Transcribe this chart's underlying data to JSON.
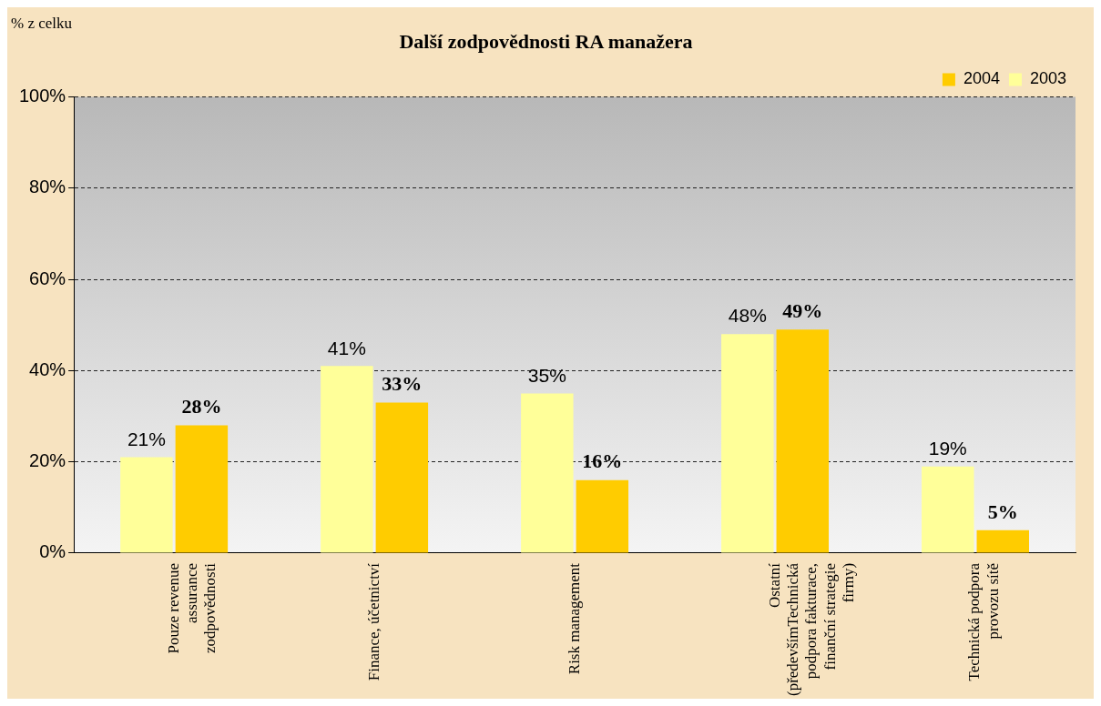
{
  "chart_data": {
    "type": "bar",
    "title": "Další zodpovědnosti RA manažera",
    "ylabel": "% z celku",
    "categories": [
      "Pouze revenue assurance zodpovědnosti",
      "Finance, účetnictví",
      "Risk management",
      "Ostatní (předevšímTechnická podpora fakturace, finanční strategie firmy)",
      "Technická podpora provozu sítě"
    ],
    "series": [
      {
        "name": "2003",
        "color": "#ffff99",
        "values": [
          21,
          41,
          35,
          48,
          19
        ],
        "value_labels": [
          "21%",
          "41%",
          "35%",
          "48%",
          "19%"
        ]
      },
      {
        "name": "2004",
        "color": "#ffcc00",
        "values": [
          28,
          33,
          16,
          49,
          5
        ],
        "value_labels": [
          "28%",
          "33%",
          "16%",
          "49%",
          "5%"
        ]
      }
    ],
    "ylim": [
      0,
      100
    ],
    "yticks": [
      {
        "value": 0,
        "label": "0%"
      },
      {
        "value": 20,
        "label": "20%"
      },
      {
        "value": 40,
        "label": "40%"
      },
      {
        "value": 60,
        "label": "60%"
      },
      {
        "value": 80,
        "label": "80%"
      },
      {
        "value": 100,
        "label": "100%"
      }
    ],
    "grid": "y",
    "line_style": "dashed",
    "legend": "top right"
  }
}
